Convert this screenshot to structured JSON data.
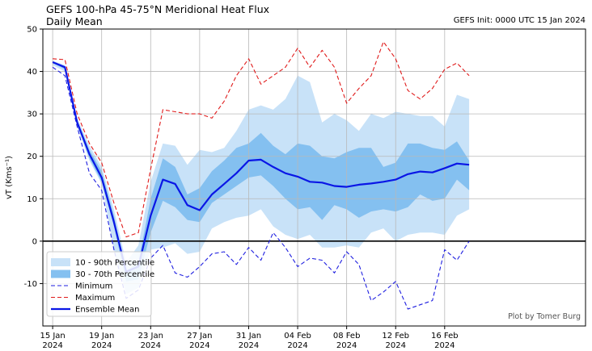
{
  "header": {
    "title": "GEFS 100-hPa 45-75°N Meridional Heat Flux",
    "subtitle": "Daily Mean",
    "init": "GEFS Init: 0000 UTC 15 Jan 2024"
  },
  "credit": "Plot by Tomer Burg",
  "chart_data": {
    "type": "area",
    "ylabel": "vT (Kms⁻¹)",
    "ylim": [
      -20,
      50
    ],
    "yticks": [
      -10,
      0,
      10,
      20,
      30,
      40,
      50
    ],
    "xlim": [
      -0.8,
      43.5
    ],
    "xticks": [
      {
        "x": 0,
        "line1": "15 Jan",
        "line2": "2024"
      },
      {
        "x": 4,
        "line1": "19 Jan",
        "line2": "2024"
      },
      {
        "x": 8,
        "line1": "23 Jan",
        "line2": "2024"
      },
      {
        "x": 12,
        "line1": "27 Jan",
        "line2": "2024"
      },
      {
        "x": 16,
        "line1": "31 Jan",
        "line2": "2024"
      },
      {
        "x": 20,
        "line1": "04 Feb",
        "line2": "2024"
      },
      {
        "x": 24,
        "line1": "08 Feb",
        "line2": "2024"
      },
      {
        "x": 28,
        "line1": "12 Feb",
        "line2": "2024"
      },
      {
        "x": 32,
        "line1": "16 Feb",
        "line2": "2024"
      }
    ],
    "grid": true,
    "zero_line": true,
    "x": [
      0,
      1,
      2,
      3,
      4,
      5,
      6,
      7,
      8,
      9,
      10,
      11,
      12,
      13,
      14,
      15,
      16,
      17,
      18,
      19,
      20,
      21,
      22,
      23,
      24,
      25,
      26,
      27,
      28,
      29,
      30,
      31,
      32,
      33,
      34
    ],
    "series": [
      {
        "name": "10 - 90th Percentile",
        "kind": "band",
        "color": "#c8e2f8",
        "low": [
          41.5,
          40.0,
          27.0,
          19.0,
          13.5,
          -2.0,
          -12.5,
          -11.0,
          -2.0,
          -1.5,
          -0.5,
          -3.0,
          -2.5,
          3.0,
          4.5,
          5.5,
          6.0,
          7.5,
          3.5,
          1.5,
          0.5,
          1.5,
          -1.5,
          -1.5,
          -1.0,
          -1.5,
          2.0,
          3.0,
          0.0,
          1.5,
          2.0,
          2.0,
          1.5,
          6.0,
          7.5
        ],
        "high": [
          42.5,
          41.5,
          29.0,
          22.5,
          17.5,
          7.5,
          -5.0,
          -1.0,
          14.0,
          23.0,
          22.5,
          18.0,
          21.5,
          21.0,
          22.0,
          26.0,
          31.0,
          32.0,
          31.0,
          33.5,
          39.0,
          37.5,
          28.0,
          30.0,
          28.5,
          26.0,
          30.0,
          29.0,
          30.5,
          30.0,
          29.5,
          29.5,
          27.0,
          34.5,
          33.5
        ]
      },
      {
        "name": "30 - 70th Percentile",
        "kind": "band",
        "color": "#84c0f0",
        "low": [
          42.0,
          40.5,
          27.5,
          19.5,
          14.0,
          3.5,
          -9.5,
          -9.0,
          2.0,
          9.5,
          8.0,
          5.0,
          4.5,
          9.0,
          11.0,
          13.0,
          15.0,
          15.5,
          13.0,
          10.0,
          7.5,
          8.0,
          5.0,
          8.5,
          7.5,
          5.5,
          7.0,
          7.5,
          7.0,
          8.0,
          11.0,
          9.5,
          10.0,
          14.5,
          12.0
        ],
        "high": [
          42.3,
          41.2,
          28.5,
          21.5,
          16.5,
          6.0,
          -7.0,
          -5.0,
          10.0,
          19.5,
          17.5,
          11.0,
          12.5,
          16.5,
          19.0,
          22.0,
          23.0,
          25.5,
          22.5,
          20.5,
          23.0,
          22.5,
          20.0,
          19.5,
          21.0,
          22.0,
          22.0,
          17.5,
          18.5,
          23.0,
          23.0,
          22.0,
          21.5,
          23.5,
          19.0
        ]
      },
      {
        "name": "Minimum",
        "kind": "line",
        "color": "#1f1fe0",
        "dash": "5,3",
        "width": 1.1,
        "values": [
          41.0,
          39.0,
          27.0,
          16.0,
          12.0,
          -2.0,
          -13.5,
          -11.5,
          -4.0,
          -1.0,
          -7.5,
          -8.5,
          -6.0,
          -3.0,
          -2.5,
          -5.5,
          -1.5,
          -4.5,
          2.0,
          -1.5,
          -6.0,
          -4.0,
          -4.5,
          -7.5,
          -2.5,
          -5.5,
          -14.0,
          -12.0,
          -9.5,
          -16.0,
          -15.0,
          -14.0,
          -2.0,
          -4.5,
          0.0
        ]
      },
      {
        "name": "Maximum",
        "kind": "line",
        "color": "#e01b1b",
        "dash": "5,3",
        "width": 1.1,
        "values": [
          43.0,
          42.8,
          30.0,
          23.0,
          18.5,
          9.0,
          1.0,
          2.0,
          17.0,
          31.0,
          30.5,
          30.0,
          30.0,
          29.0,
          33.0,
          39.0,
          43.0,
          37.0,
          39.0,
          41.0,
          45.5,
          41.0,
          45.0,
          41.0,
          32.5,
          36.0,
          39.0,
          47.0,
          43.0,
          35.5,
          33.5,
          36.0,
          40.5,
          42.0,
          39.0
        ]
      },
      {
        "name": "Ensemble Mean",
        "kind": "line",
        "color": "#0a16e6",
        "dash": "",
        "width": 2.2,
        "values": [
          42.2,
          41.0,
          28.0,
          20.5,
          15.0,
          4.5,
          -7.2,
          -6.0,
          6.0,
          14.5,
          13.5,
          8.5,
          7.3,
          11.0,
          13.5,
          16.0,
          19.0,
          19.2,
          17.5,
          16.0,
          15.2,
          14.0,
          13.8,
          13.0,
          12.8,
          13.3,
          13.6,
          14.0,
          14.5,
          15.8,
          16.4,
          16.2,
          17.2,
          18.3,
          18.0
        ]
      }
    ]
  }
}
